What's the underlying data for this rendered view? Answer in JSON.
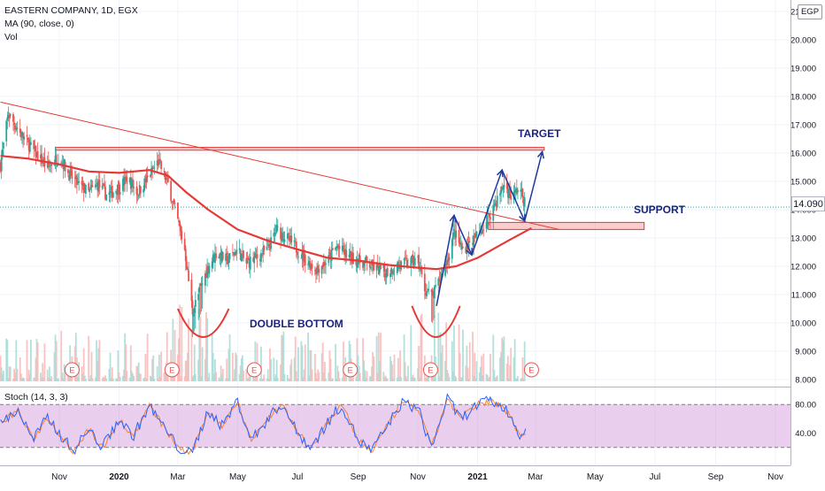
{
  "header": {
    "symbol_line": "EASTERN COMPANY, 1D, EGX",
    "ma_label": "MA (90, close, 0)",
    "vol_label": "Vol",
    "currency_badge": "EGP",
    "last_price": "14.090"
  },
  "annotations": {
    "target": "TARGET",
    "support": "SUPPORT",
    "double_bottom": "DOUBLE BOTTOM",
    "earnings_marker": "E"
  },
  "oscillator": {
    "label": "Stoch (14, 3, 3)",
    "upper_band": 80,
    "lower_band": 20,
    "upper_label": "80.00",
    "lower_label": "40.00",
    "tick_values": [
      80,
      40
    ]
  },
  "chart_data": {
    "type": "candlestick",
    "ylim": [
      8.0,
      21.0
    ],
    "y_ticks": [
      8,
      9,
      10,
      11,
      12,
      13,
      14,
      15,
      16,
      17,
      18,
      19,
      20,
      21
    ],
    "y_tick_labels": [
      "8.000",
      "9.000",
      "10.000",
      "11.000",
      "12.000",
      "13.000",
      "14.000",
      "15.000",
      "16.000",
      "17.000",
      "18.000",
      "19.000",
      "20.000",
      "21.000"
    ],
    "x_tick_labels": [
      "Nov",
      "2020",
      "Mar",
      "May",
      "Jul",
      "Sep",
      "Nov",
      "2021",
      "Mar",
      "May",
      "Jul",
      "Sep",
      "Nov"
    ],
    "x_tick_dates": [
      "2019-11-01",
      "2020-01-01",
      "2020-03-01",
      "2020-05-01",
      "2020-07-01",
      "2020-09-01",
      "2020-11-01",
      "2021-01-01",
      "2021-03-01",
      "2021-05-01",
      "2021-07-01",
      "2021-09-01",
      "2021-11-01"
    ],
    "price_path": [
      [
        "2019-09-02",
        15.6
      ],
      [
        "2019-09-10",
        17.4
      ],
      [
        "2019-09-20",
        16.8
      ],
      [
        "2019-10-01",
        16.3
      ],
      [
        "2019-10-10",
        15.9
      ],
      [
        "2019-10-20",
        15.5
      ],
      [
        "2019-11-01",
        15.9
      ],
      [
        "2019-11-10",
        15.3
      ],
      [
        "2019-11-20",
        14.9
      ],
      [
        "2019-12-01",
        14.6
      ],
      [
        "2019-12-10",
        14.9
      ],
      [
        "2019-12-20",
        14.5
      ],
      [
        "2020-01-01",
        14.8
      ],
      [
        "2020-01-10",
        15.1
      ],
      [
        "2020-01-20",
        14.6
      ],
      [
        "2020-02-01",
        15.2
      ],
      [
        "2020-02-10",
        15.7
      ],
      [
        "2020-02-20",
        14.9
      ],
      [
        "2020-03-01",
        13.6
      ],
      [
        "2020-03-08",
        12.6
      ],
      [
        "2020-03-16",
        10.4
      ],
      [
        "2020-03-24",
        11.2
      ],
      [
        "2020-04-01",
        12.0
      ],
      [
        "2020-04-10",
        12.5
      ],
      [
        "2020-04-20",
        12.2
      ],
      [
        "2020-05-01",
        12.6
      ],
      [
        "2020-05-10",
        12.1
      ],
      [
        "2020-05-20",
        12.3
      ],
      [
        "2020-06-01",
        12.6
      ],
      [
        "2020-06-10",
        13.3
      ],
      [
        "2020-06-20",
        13.0
      ],
      [
        "2020-07-01",
        12.6
      ],
      [
        "2020-07-10",
        12.2
      ],
      [
        "2020-07-20",
        11.9
      ],
      [
        "2020-08-01",
        12.2
      ],
      [
        "2020-08-10",
        12.7
      ],
      [
        "2020-08-20",
        12.4
      ],
      [
        "2020-09-01",
        12.2
      ],
      [
        "2020-09-10",
        12.1
      ],
      [
        "2020-09-20",
        11.9
      ],
      [
        "2020-10-01",
        11.8
      ],
      [
        "2020-10-10",
        12.0
      ],
      [
        "2020-10-20",
        12.1
      ],
      [
        "2020-11-01",
        12.2
      ],
      [
        "2020-11-08",
        11.2
      ],
      [
        "2020-11-16",
        10.9
      ],
      [
        "2020-11-24",
        11.6
      ],
      [
        "2020-12-01",
        12.2
      ],
      [
        "2020-12-08",
        13.2
      ],
      [
        "2020-12-16",
        12.6
      ],
      [
        "2020-12-24",
        12.8
      ],
      [
        "2021-01-01",
        13.1
      ],
      [
        "2021-01-10",
        13.6
      ],
      [
        "2021-01-20",
        14.3
      ],
      [
        "2021-01-28",
        14.9
      ],
      [
        "2021-02-05",
        14.4
      ],
      [
        "2021-02-12",
        14.8
      ],
      [
        "2021-02-20",
        14.09
      ]
    ],
    "ma90_path": [
      [
        "2019-09-02",
        15.9
      ],
      [
        "2019-10-01",
        15.8
      ],
      [
        "2019-11-01",
        15.6
      ],
      [
        "2019-12-01",
        15.35
      ],
      [
        "2020-01-01",
        15.3
      ],
      [
        "2020-02-01",
        15.4
      ],
      [
        "2020-02-20",
        15.2
      ],
      [
        "2020-03-10",
        14.6
      ],
      [
        "2020-04-01",
        14.0
      ],
      [
        "2020-05-01",
        13.3
      ],
      [
        "2020-06-01",
        12.9
      ],
      [
        "2020-07-01",
        12.6
      ],
      [
        "2020-08-01",
        12.3
      ],
      [
        "2020-09-01",
        12.2
      ],
      [
        "2020-10-01",
        12.05
      ],
      [
        "2020-11-01",
        11.95
      ],
      [
        "2020-11-20",
        11.9
      ],
      [
        "2020-12-10",
        12.0
      ],
      [
        "2021-01-01",
        12.3
      ],
      [
        "2021-02-01",
        12.9
      ],
      [
        "2021-02-25",
        13.35
      ]
    ],
    "trendline": [
      [
        "2019-09-02",
        17.8
      ],
      [
        "2021-03-25",
        13.3
      ]
    ],
    "target_zone": {
      "from": "2019-10-28",
      "to": "2021-03-10",
      "y0": 16.1,
      "y1": 16.2
    },
    "support_zone": {
      "from": "2021-01-12",
      "to": "2021-06-20",
      "y0": 13.3,
      "y1": 13.55
    },
    "projection_path": [
      [
        "2020-11-20",
        10.6
      ],
      [
        "2020-12-08",
        13.8
      ],
      [
        "2020-12-26",
        12.4
      ],
      [
        "2021-01-26",
        15.4
      ],
      [
        "2021-02-18",
        13.6
      ],
      [
        "2021-03-08",
        16.05
      ]
    ],
    "double_bottom_curves": [
      {
        "from": "2020-03-01",
        "to": "2020-04-22",
        "top": 10.5,
        "bottom": 9.5
      },
      {
        "from": "2020-10-26",
        "to": "2020-12-14",
        "top": 10.6,
        "bottom": 9.5
      }
    ],
    "earnings_dates": [
      "2019-11-14",
      "2020-02-24",
      "2020-05-18",
      "2020-08-24",
      "2020-11-14",
      "2021-02-25"
    ],
    "stoch_path": [
      [
        "2019-09-02",
        55
      ],
      [
        "2019-09-20",
        72
      ],
      [
        "2019-10-05",
        30
      ],
      [
        "2019-10-20",
        62
      ],
      [
        "2019-11-01",
        40
      ],
      [
        "2019-11-15",
        15
      ],
      [
        "2019-12-01",
        45
      ],
      [
        "2019-12-15",
        20
      ],
      [
        "2020-01-01",
        60
      ],
      [
        "2020-01-15",
        35
      ],
      [
        "2020-02-01",
        78
      ],
      [
        "2020-02-15",
        50
      ],
      [
        "2020-03-01",
        20
      ],
      [
        "2020-03-15",
        10
      ],
      [
        "2020-04-01",
        72
      ],
      [
        "2020-04-15",
        50
      ],
      [
        "2020-05-01",
        85
      ],
      [
        "2020-05-15",
        30
      ],
      [
        "2020-06-01",
        60
      ],
      [
        "2020-06-15",
        82
      ],
      [
        "2020-07-01",
        40
      ],
      [
        "2020-07-15",
        20
      ],
      [
        "2020-08-01",
        55
      ],
      [
        "2020-08-15",
        80
      ],
      [
        "2020-09-01",
        30
      ],
      [
        "2020-09-15",
        15
      ],
      [
        "2020-10-01",
        50
      ],
      [
        "2020-10-15",
        82
      ],
      [
        "2020-11-01",
        75
      ],
      [
        "2020-11-15",
        20
      ],
      [
        "2020-12-01",
        88
      ],
      [
        "2020-12-15",
        60
      ],
      [
        "2021-01-01",
        80
      ],
      [
        "2021-01-15",
        85
      ],
      [
        "2021-02-01",
        70
      ],
      [
        "2021-02-12",
        40
      ],
      [
        "2021-02-20",
        38
      ]
    ]
  }
}
